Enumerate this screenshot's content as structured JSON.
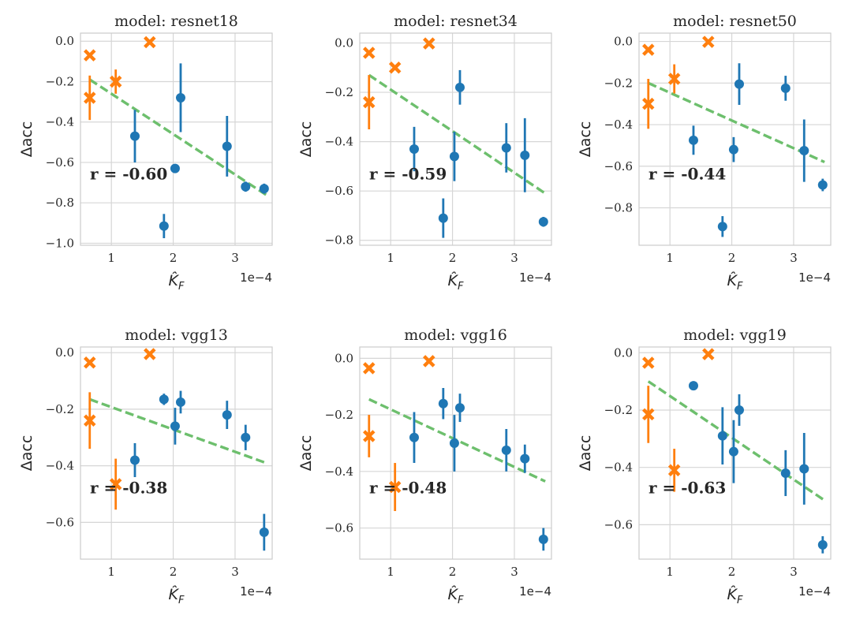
{
  "figure": {
    "xlabel": "K̂F",
    "xlabel_base": "K̂",
    "xlabel_sub": "F",
    "ylabel": "Δacc",
    "x_offset_text": "1e−4"
  },
  "chart_data": [
    {
      "type": "scatter",
      "title": "model: resnet18",
      "r_label": "r = -0.60",
      "xlim": [
        0.5,
        3.6
      ],
      "ylim": [
        -1.01,
        0.04
      ],
      "xticks": [
        1,
        2,
        3
      ],
      "xtick_labels": [
        "1",
        "2",
        "3"
      ],
      "yticks": [
        0.0,
        -0.2,
        -0.4,
        -0.6,
        -0.8,
        -1.0
      ],
      "ytick_labels": [
        "0.0",
        "−0.2",
        "−0.4",
        "−0.6",
        "−0.8",
        "−1.0"
      ],
      "fit": [
        [
          0.65,
          -0.19
        ],
        [
          3.5,
          -0.76
        ]
      ],
      "series": [
        {
          "name": "x-marker",
          "marker": "x",
          "color": "#ff7f0e",
          "points": [
            {
              "x": 0.65,
              "y": -0.07
            },
            {
              "x": 0.65,
              "y": -0.28,
              "err": 0.11
            },
            {
              "x": 1.07,
              "y": -0.2,
              "err": 0.06
            },
            {
              "x": 1.62,
              "y": -0.005
            }
          ]
        },
        {
          "name": "circle",
          "marker": "o",
          "color": "#1f77b4",
          "points": [
            {
              "x": 1.38,
              "y": -0.47,
              "err": 0.13
            },
            {
              "x": 1.85,
              "y": -0.915,
              "err": 0.06
            },
            {
              "x": 2.03,
              "y": -0.63
            },
            {
              "x": 2.12,
              "y": -0.28,
              "err": 0.17
            },
            {
              "x": 2.87,
              "y": -0.52,
              "err": 0.15
            },
            {
              "x": 3.17,
              "y": -0.72,
              "err": 0.025
            },
            {
              "x": 3.47,
              "y": -0.73,
              "err": 0.025
            }
          ]
        }
      ]
    },
    {
      "type": "scatter",
      "title": "model: resnet34",
      "r_label": "r = -0.59",
      "xlim": [
        0.5,
        3.6
      ],
      "ylim": [
        -0.82,
        0.04
      ],
      "xticks": [
        1,
        2,
        3
      ],
      "xtick_labels": [
        "1",
        "2",
        "3"
      ],
      "yticks": [
        0.0,
        -0.2,
        -0.4,
        -0.6,
        -0.8
      ],
      "ytick_labels": [
        "0.0",
        "−0.2",
        "−0.4",
        "−0.6",
        "−0.8"
      ],
      "fit": [
        [
          0.65,
          -0.13
        ],
        [
          3.5,
          -0.61
        ]
      ],
      "series": [
        {
          "name": "x-marker",
          "marker": "x",
          "color": "#ff7f0e",
          "points": [
            {
              "x": 0.65,
              "y": -0.04
            },
            {
              "x": 0.65,
              "y": -0.24,
              "err": 0.11
            },
            {
              "x": 1.07,
              "y": -0.1
            },
            {
              "x": 1.62,
              "y": -0.002
            }
          ]
        },
        {
          "name": "circle",
          "marker": "o",
          "color": "#1f77b4",
          "points": [
            {
              "x": 1.38,
              "y": -0.43,
              "err": 0.09
            },
            {
              "x": 1.85,
              "y": -0.71,
              "err": 0.08
            },
            {
              "x": 2.03,
              "y": -0.46,
              "err": 0.1
            },
            {
              "x": 2.12,
              "y": -0.18,
              "err": 0.07
            },
            {
              "x": 2.87,
              "y": -0.425,
              "err": 0.1
            },
            {
              "x": 3.17,
              "y": -0.455,
              "err": 0.15
            },
            {
              "x": 3.47,
              "y": -0.725,
              "err": 0.02
            }
          ]
        }
      ]
    },
    {
      "type": "scatter",
      "title": "model: resnet50",
      "r_label": "r = -0.44",
      "xlim": [
        0.5,
        3.6
      ],
      "ylim": [
        -0.98,
        0.04
      ],
      "xticks": [
        1,
        2,
        3
      ],
      "xtick_labels": [
        "1",
        "2",
        "3"
      ],
      "yticks": [
        0.0,
        -0.2,
        -0.4,
        -0.6,
        -0.8
      ],
      "ytick_labels": [
        "0.0",
        "−0.2",
        "−0.4",
        "−0.6",
        "−0.8"
      ],
      "fit": [
        [
          0.65,
          -0.2
        ],
        [
          3.5,
          -0.58
        ]
      ],
      "series": [
        {
          "name": "x-marker",
          "marker": "x",
          "color": "#ff7f0e",
          "points": [
            {
              "x": 0.65,
              "y": -0.04
            },
            {
              "x": 0.65,
              "y": -0.3,
              "err": 0.12
            },
            {
              "x": 1.07,
              "y": -0.18,
              "err": 0.07
            },
            {
              "x": 1.62,
              "y": -0.002
            }
          ]
        },
        {
          "name": "circle",
          "marker": "o",
          "color": "#1f77b4",
          "points": [
            {
              "x": 1.38,
              "y": -0.475,
              "err": 0.07
            },
            {
              "x": 1.85,
              "y": -0.89,
              "err": 0.05
            },
            {
              "x": 2.03,
              "y": -0.52,
              "err": 0.06
            },
            {
              "x": 2.12,
              "y": -0.205,
              "err": 0.1
            },
            {
              "x": 2.87,
              "y": -0.225,
              "err": 0.06
            },
            {
              "x": 3.17,
              "y": -0.525,
              "err": 0.15
            },
            {
              "x": 3.47,
              "y": -0.69,
              "err": 0.03
            }
          ]
        }
      ]
    },
    {
      "type": "scatter",
      "title": "model: vgg13",
      "r_label": "r = -0.38",
      "xlim": [
        0.5,
        3.6
      ],
      "ylim": [
        -0.73,
        0.02
      ],
      "xticks": [
        1,
        2,
        3
      ],
      "xtick_labels": [
        "1",
        "2",
        "3"
      ],
      "yticks": [
        0.0,
        -0.2,
        -0.4,
        -0.6
      ],
      "ytick_labels": [
        "0.0",
        "−0.2",
        "−0.4",
        "−0.6"
      ],
      "fit": [
        [
          0.65,
          -0.165
        ],
        [
          3.5,
          -0.39
        ]
      ],
      "series": [
        {
          "name": "x-marker",
          "marker": "x",
          "color": "#ff7f0e",
          "points": [
            {
              "x": 0.65,
              "y": -0.035
            },
            {
              "x": 0.65,
              "y": -0.24,
              "err": 0.1
            },
            {
              "x": 1.07,
              "y": -0.465,
              "err": 0.09
            },
            {
              "x": 1.62,
              "y": -0.005
            }
          ]
        },
        {
          "name": "circle",
          "marker": "o",
          "color": "#1f77b4",
          "points": [
            {
              "x": 1.38,
              "y": -0.38,
              "err": 0.06
            },
            {
              "x": 1.85,
              "y": -0.165,
              "err": 0.02
            },
            {
              "x": 2.03,
              "y": -0.26,
              "err": 0.065
            },
            {
              "x": 2.12,
              "y": -0.175,
              "err": 0.04
            },
            {
              "x": 2.87,
              "y": -0.22,
              "err": 0.05
            },
            {
              "x": 3.17,
              "y": -0.3,
              "err": 0.045
            },
            {
              "x": 3.47,
              "y": -0.635,
              "err": 0.065
            }
          ]
        }
      ]
    },
    {
      "type": "scatter",
      "title": "model: vgg16",
      "r_label": "r = -0.48",
      "xlim": [
        0.5,
        3.6
      ],
      "ylim": [
        -0.71,
        0.04
      ],
      "xticks": [
        1,
        2,
        3
      ],
      "xtick_labels": [
        "1",
        "2",
        "3"
      ],
      "yticks": [
        0.0,
        -0.2,
        -0.4,
        -0.6
      ],
      "ytick_labels": [
        "0.0",
        "−0.2",
        "−0.4",
        "−0.6"
      ],
      "fit": [
        [
          0.65,
          -0.145
        ],
        [
          3.5,
          -0.435
        ]
      ],
      "series": [
        {
          "name": "x-marker",
          "marker": "x",
          "color": "#ff7f0e",
          "points": [
            {
              "x": 0.65,
              "y": -0.035
            },
            {
              "x": 0.65,
              "y": -0.275,
              "err": 0.075
            },
            {
              "x": 1.07,
              "y": -0.455,
              "err": 0.085
            },
            {
              "x": 1.62,
              "y": -0.01
            }
          ]
        },
        {
          "name": "circle",
          "marker": "o",
          "color": "#1f77b4",
          "points": [
            {
              "x": 1.38,
              "y": -0.28,
              "err": 0.09
            },
            {
              "x": 1.85,
              "y": -0.16,
              "err": 0.055
            },
            {
              "x": 2.03,
              "y": -0.3,
              "err": 0.1
            },
            {
              "x": 2.12,
              "y": -0.175,
              "err": 0.05
            },
            {
              "x": 2.87,
              "y": -0.325,
              "err": 0.075
            },
            {
              "x": 3.17,
              "y": -0.355,
              "err": 0.05
            },
            {
              "x": 3.47,
              "y": -0.64,
              "err": 0.04
            }
          ]
        }
      ]
    },
    {
      "type": "scatter",
      "title": "model: vgg19",
      "r_label": "r = -0.63",
      "xlim": [
        0.5,
        3.6
      ],
      "ylim": [
        -0.72,
        0.02
      ],
      "xticks": [
        1,
        2,
        3
      ],
      "xtick_labels": [
        "1",
        "2",
        "3"
      ],
      "yticks": [
        0.0,
        -0.2,
        -0.4,
        -0.6
      ],
      "ytick_labels": [
        "0.0",
        "−0.2",
        "−0.4",
        "−0.6"
      ],
      "fit": [
        [
          0.65,
          -0.1
        ],
        [
          3.5,
          -0.515
        ]
      ],
      "series": [
        {
          "name": "x-marker",
          "marker": "x",
          "color": "#ff7f0e",
          "points": [
            {
              "x": 0.65,
              "y": -0.035
            },
            {
              "x": 0.65,
              "y": -0.215,
              "err": 0.1
            },
            {
              "x": 1.07,
              "y": -0.41,
              "err": 0.075
            },
            {
              "x": 1.62,
              "y": -0.005
            }
          ]
        },
        {
          "name": "circle",
          "marker": "o",
          "color": "#1f77b4",
          "points": [
            {
              "x": 1.38,
              "y": -0.115
            },
            {
              "x": 1.85,
              "y": -0.29,
              "err": 0.1
            },
            {
              "x": 2.03,
              "y": -0.345,
              "err": 0.11
            },
            {
              "x": 2.12,
              "y": -0.2,
              "err": 0.055
            },
            {
              "x": 2.87,
              "y": -0.42,
              "err": 0.08
            },
            {
              "x": 3.17,
              "y": -0.405,
              "err": 0.125
            },
            {
              "x": 3.47,
              "y": -0.67,
              "err": 0.03
            }
          ]
        }
      ]
    }
  ],
  "colors": {
    "fit_line": "#6dbf6d",
    "grid": "#d6d6d6",
    "frame": "#cccccc",
    "text": "#262626"
  }
}
